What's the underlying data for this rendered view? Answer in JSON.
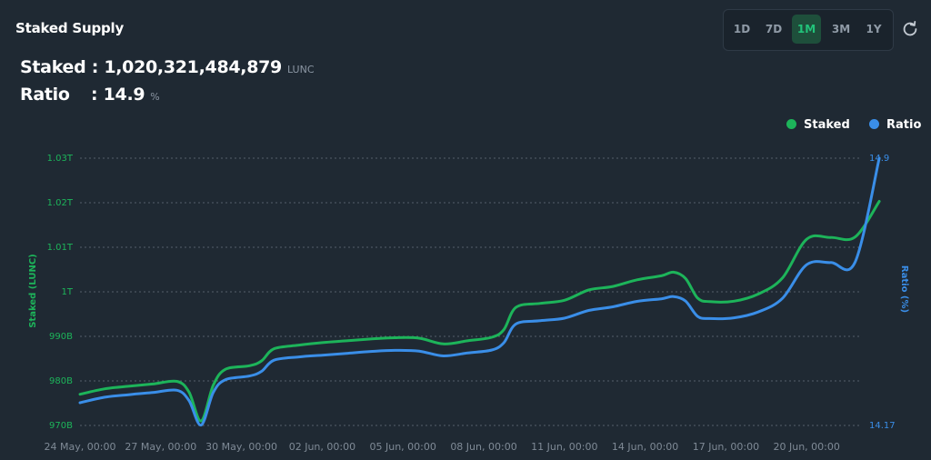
{
  "header": {
    "title": "Staked Supply",
    "staked_label": "Staked : ",
    "staked_value": "1,020,321,484,879",
    "staked_unit": "LUNC",
    "ratio_label": "Ratio",
    "ratio_value": ": 14.9",
    "ratio_unit": "%"
  },
  "range_buttons": [
    {
      "label": "1D",
      "active": false
    },
    {
      "label": "7D",
      "active": false
    },
    {
      "label": "1M",
      "active": true
    },
    {
      "label": "3M",
      "active": false
    },
    {
      "label": "1Y",
      "active": false
    }
  ],
  "colors": {
    "staked": "#1db45a",
    "ratio": "#3a8ee8",
    "accent": "#22c37a",
    "background": "#1f2933",
    "grid": "#55606b"
  },
  "icons": {
    "refresh": "refresh-icon"
  },
  "chart_data": {
    "type": "line",
    "legend": [
      "Staked",
      "Ratio"
    ],
    "legend_position": "top-right",
    "y_left_label": "Staked (LUNC)",
    "y_right_label": "Ratio (%)",
    "y_left_ticks": [
      "970B",
      "980B",
      "990B",
      "1T",
      "1.01T",
      "1.02T",
      "1.03T"
    ],
    "y_left_tick_values": [
      970,
      980,
      990,
      1000,
      1010,
      1020,
      1030
    ],
    "y_left_unit_note": "values in billions of LUNC",
    "y_left_range": [
      970,
      1030
    ],
    "y_right_ticks": [
      "14.17",
      "14.9"
    ],
    "y_right_tick_values": [
      14.17,
      14.9
    ],
    "y_right_range": [
      14.17,
      14.9
    ],
    "x_ticks": [
      "24 May, 00:00",
      "27 May, 00:00",
      "30 May, 00:00",
      "02 Jun, 00:00",
      "05 Jun, 00:00",
      "08 Jun, 00:00",
      "11 Jun, 00:00",
      "14 Jun, 00:00",
      "17 Jun, 00:00",
      "20 Jun, 00:00"
    ],
    "x_day_range": [
      0,
      29.8
    ],
    "grid": true,
    "series": [
      {
        "name": "Staked",
        "axis": "left",
        "points": [
          [
            0,
            977.0
          ],
          [
            1,
            978.2
          ],
          [
            2,
            978.8
          ],
          [
            3,
            979.3
          ],
          [
            4,
            979.9
          ],
          [
            4.5,
            977.5
          ],
          [
            5,
            971.0
          ],
          [
            5.5,
            979.0
          ],
          [
            6,
            982.6
          ],
          [
            7,
            983.4
          ],
          [
            7.5,
            984.5
          ],
          [
            8,
            987.2
          ],
          [
            9,
            988.0
          ],
          [
            10,
            988.6
          ],
          [
            11,
            989.0
          ],
          [
            12,
            989.4
          ],
          [
            13,
            989.7
          ],
          [
            14,
            989.6
          ],
          [
            15,
            988.3
          ],
          [
            16,
            989.0
          ],
          [
            17,
            989.8
          ],
          [
            17.5,
            991.5
          ],
          [
            18,
            996.5
          ],
          [
            19,
            997.4
          ],
          [
            20,
            998.1
          ],
          [
            21,
            1000.4
          ],
          [
            22,
            1001.2
          ],
          [
            23,
            1002.7
          ],
          [
            24,
            1003.6
          ],
          [
            24.5,
            1004.4
          ],
          [
            25,
            1003.0
          ],
          [
            25.5,
            998.6
          ],
          [
            26,
            997.8
          ],
          [
            27,
            997.9
          ],
          [
            28,
            999.5
          ],
          [
            29,
            1003.1
          ],
          [
            30,
            1011.8
          ],
          [
            31,
            1012.2
          ],
          [
            32,
            1012.3
          ],
          [
            33,
            1020.3
          ]
        ]
      },
      {
        "name": "Ratio",
        "axis": "right",
        "points": [
          [
            0,
            14.232
          ],
          [
            1,
            14.247
          ],
          [
            2,
            14.254
          ],
          [
            3,
            14.26
          ],
          [
            4,
            14.266
          ],
          [
            4.5,
            14.238
          ],
          [
            5,
            14.171
          ],
          [
            5.5,
            14.26
          ],
          [
            6,
            14.295
          ],
          [
            7,
            14.305
          ],
          [
            7.5,
            14.318
          ],
          [
            8,
            14.348
          ],
          [
            9,
            14.357
          ],
          [
            10,
            14.362
          ],
          [
            11,
            14.367
          ],
          [
            12,
            14.372
          ],
          [
            13,
            14.375
          ],
          [
            14,
            14.373
          ],
          [
            15,
            14.36
          ],
          [
            16,
            14.368
          ],
          [
            17,
            14.376
          ],
          [
            17.5,
            14.396
          ],
          [
            18,
            14.447
          ],
          [
            19,
            14.456
          ],
          [
            20,
            14.463
          ],
          [
            21,
            14.484
          ],
          [
            22,
            14.494
          ],
          [
            23,
            14.509
          ],
          [
            24,
            14.516
          ],
          [
            24.5,
            14.522
          ],
          [
            25,
            14.51
          ],
          [
            25.5,
            14.468
          ],
          [
            26,
            14.462
          ],
          [
            27,
            14.464
          ],
          [
            28,
            14.48
          ],
          [
            29,
            14.517
          ],
          [
            30,
            14.609
          ],
          [
            31,
            14.615
          ],
          [
            32,
            14.616
          ],
          [
            33,
            14.9
          ]
        ]
      }
    ]
  }
}
